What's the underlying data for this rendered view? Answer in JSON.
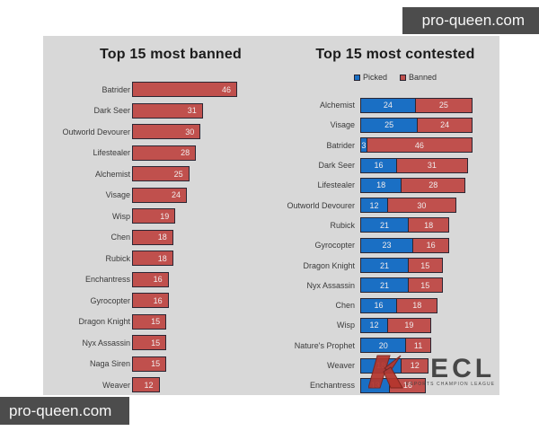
{
  "watermark_top": {
    "label": "pro-queen.com"
  },
  "watermark_bottom": {
    "label": "pro-queen.com"
  },
  "ecl_logo": {
    "name": "ECL",
    "tagline": "ESPORTS CHAMPION LEAGUE"
  },
  "colors": {
    "panel_bg": "#d8d8d8",
    "page_bg": "#ffffff",
    "watermark_bg": "#4c4c4c",
    "bar_border": "#2b2633",
    "banned_red": "#c0504d",
    "picked_blue": "#1a6fc4",
    "ecl_red": "#b5362d",
    "ecl_gray": "#3d3d3d"
  },
  "chart_data": [
    {
      "type": "bar",
      "orientation": "horizontal",
      "title": "Top 15 most banned",
      "categories": [
        "Batrider",
        "Dark Seer",
        "Outworld Devourer",
        "Lifestealer",
        "Alchemist",
        "Visage",
        "Wisp",
        "Chen",
        "Rubick",
        "Enchantress",
        "Gyrocopter",
        "Dragon Knight",
        "Nyx Assassin",
        "Naga Siren",
        "Weaver"
      ],
      "values": [
        46,
        31,
        30,
        28,
        25,
        24,
        19,
        18,
        18,
        16,
        16,
        15,
        15,
        15,
        12
      ],
      "bar_color": "#c0504d",
      "value_labels": "inside-end",
      "xlim": [
        0,
        48
      ],
      "grid": false,
      "legend_position": "none"
    },
    {
      "type": "bar",
      "orientation": "horizontal",
      "stacked": true,
      "title": "Top 15 most contested",
      "legend": {
        "position": "top",
        "entries": [
          "Picked",
          "Banned"
        ]
      },
      "categories": [
        "Alchemist",
        "Visage",
        "Batrider",
        "Dark Seer",
        "Lifestealer",
        "Outworld Devourer",
        "Rubick",
        "Gyrocopter",
        "Dragon Knight",
        "Nyx Assassin",
        "Chen",
        "Wisp",
        "Nature's Prophet",
        "Weaver",
        "Enchantress"
      ],
      "series": [
        {
          "name": "Picked",
          "color": "#1a6fc4",
          "values": [
            24,
            25,
            3,
            16,
            18,
            12,
            21,
            23,
            21,
            21,
            16,
            12,
            20,
            18,
            13
          ]
        },
        {
          "name": "Banned",
          "color": "#c0504d",
          "values": [
            25,
            24,
            46,
            31,
            28,
            30,
            18,
            16,
            15,
            15,
            18,
            19,
            11,
            12,
            16
          ]
        }
      ],
      "value_labels": "center",
      "xlim": [
        0,
        50
      ],
      "grid": false
    }
  ]
}
